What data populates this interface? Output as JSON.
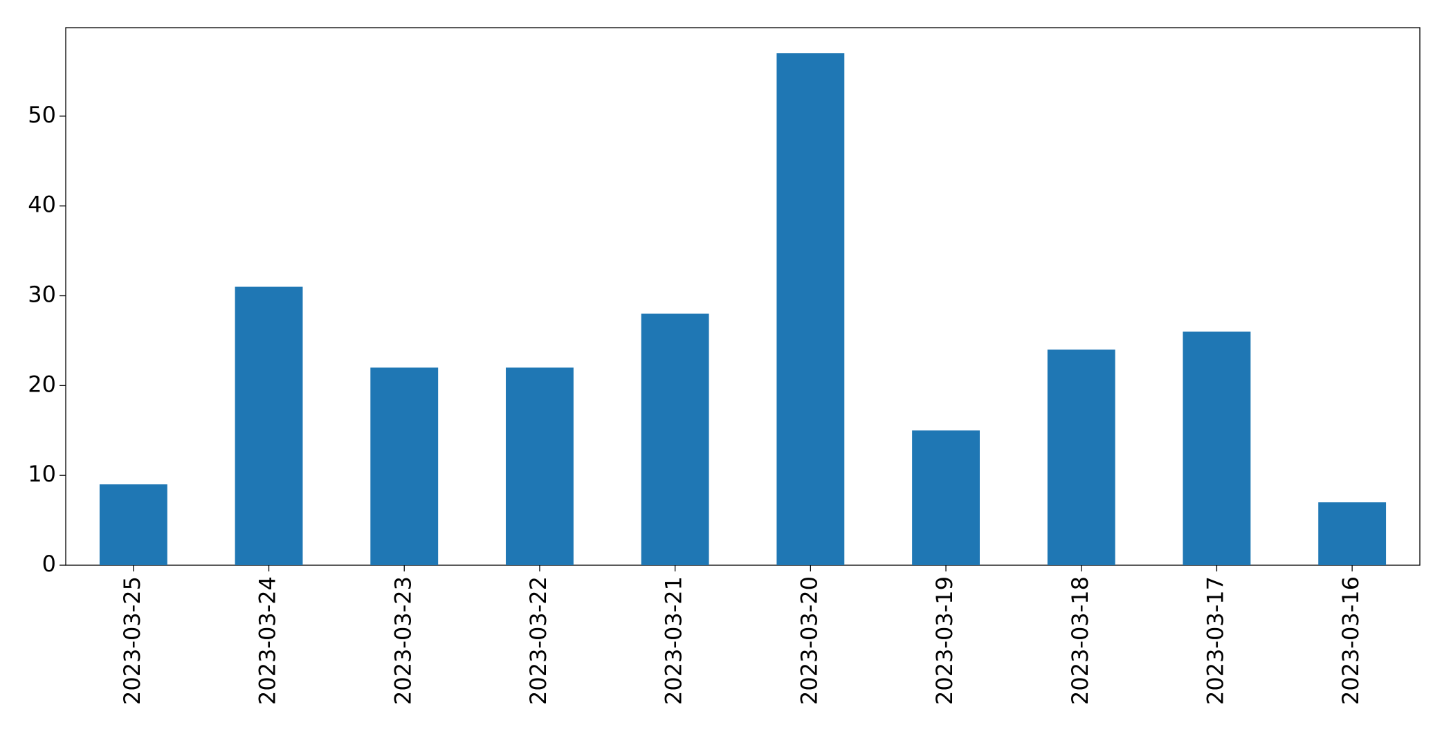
{
  "chart_data": {
    "type": "bar",
    "categories": [
      "2023-03-25",
      "2023-03-24",
      "2023-03-23",
      "2023-03-22",
      "2023-03-21",
      "2023-03-20",
      "2023-03-19",
      "2023-03-18",
      "2023-03-17",
      "2023-03-16"
    ],
    "values": [
      9,
      31,
      22,
      22,
      28,
      57,
      15,
      24,
      26,
      7
    ],
    "color": "#1f77b4",
    "ylim": [
      0,
      59.85
    ],
    "yticks": [
      0,
      10,
      20,
      30,
      40,
      50
    ],
    "grid": false
  }
}
